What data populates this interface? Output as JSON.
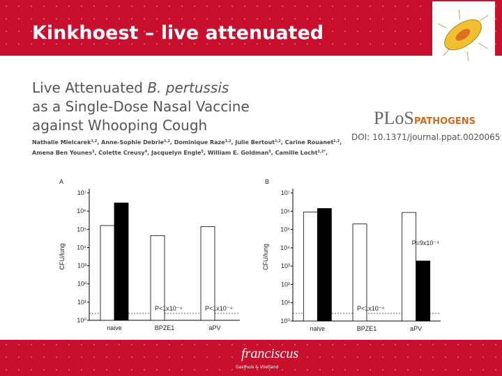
{
  "slide_title": "Kinkhoest – live attenuated",
  "paper": {
    "line1": "Live Attenuated",
    "line1_italic": "B. pertussis",
    "line2": "as a Single-Dose Nasal Vaccine",
    "line3": "against Whooping Cough",
    "separator": ",",
    "authors": [
      {
        "name": "Nathalie Mielcarek",
        "aff": "1,2"
      },
      {
        "name": "Anne-Sophie Debrie",
        "aff": "1,2"
      },
      {
        "name": "Dominique Raze",
        "aff": "1,2"
      },
      {
        "name": "Julie Bertout",
        "aff": "1,2"
      },
      {
        "name": "Carine Rouanet",
        "aff": "1,2"
      },
      {
        "name": "Amena Ben Younes",
        "aff": "3"
      },
      {
        "name": "Colette Creusy",
        "aff": "4"
      },
      {
        "name": "Jacquelyn Engle",
        "aff": "5"
      },
      {
        "name": "William E. Goldman",
        "aff": "5"
      },
      {
        "name": "Camille Locht",
        "aff": "1,2*"
      }
    ]
  },
  "journal": {
    "plos": "PLoS",
    "pathogens": "PATHOGENS",
    "doi": "DOI: 10.1371/journal.ppat.0020065"
  },
  "footer": {
    "brand": "franciscus",
    "sub": "Gasthuis & Vlietland"
  },
  "chart_data": [
    {
      "type": "bar",
      "panel": "A",
      "y_label": "CFU/lung",
      "log_scale": true,
      "categories": [
        "naive",
        "BPZE1",
        "aPV"
      ],
      "series": [
        {
          "name": null,
          "color": "#ffffff",
          "values": [
            160000,
            45000,
            140000
          ]
        },
        {
          "name": null,
          "color": "#000000",
          "values": [
            2800000,
            null,
            null
          ]
        }
      ],
      "ylim": [
        1,
        10000000
      ],
      "yticks": [
        {
          "value": 1,
          "label": "10⁰"
        },
        {
          "value": 10,
          "label": "10¹"
        },
        {
          "value": 100,
          "label": "10²"
        },
        {
          "value": 1000,
          "label": "10³"
        },
        {
          "value": 10000,
          "label": "10⁴"
        },
        {
          "value": 100000,
          "label": "10⁵"
        },
        {
          "value": 1000000,
          "label": "10⁶"
        },
        {
          "value": 10000000,
          "label": "10⁷"
        }
      ],
      "detection_limit": 2.4,
      "annotations": [
        "P<1x10⁻⁴",
        "P<1x10⁻⁴"
      ]
    },
    {
      "type": "bar",
      "panel": "B",
      "y_label": "CFU/lung",
      "log_scale": true,
      "categories": [
        "naive",
        "BPZE1",
        "aPV"
      ],
      "series": [
        {
          "name": null,
          "color": "#ffffff",
          "values": [
            900000,
            200000,
            850000
          ]
        },
        {
          "name": null,
          "color": "#000000",
          "values": [
            1400000,
            null,
            1900
          ]
        }
      ],
      "ylim": [
        1,
        10000000
      ],
      "yticks": [
        {
          "value": 1,
          "label": "10⁰"
        },
        {
          "value": 10,
          "label": "10¹"
        },
        {
          "value": 100,
          "label": "10²"
        },
        {
          "value": 1000,
          "label": "10³"
        },
        {
          "value": 10000,
          "label": "10⁴"
        },
        {
          "value": 100000,
          "label": "10⁵"
        },
        {
          "value": 1000000,
          "label": "10⁶"
        },
        {
          "value": 10000000,
          "label": "10⁷"
        }
      ],
      "detection_limit": 2.6,
      "annotations": [
        "P<1x10⁻⁴",
        "P=9x10⁻⁴"
      ]
    }
  ]
}
